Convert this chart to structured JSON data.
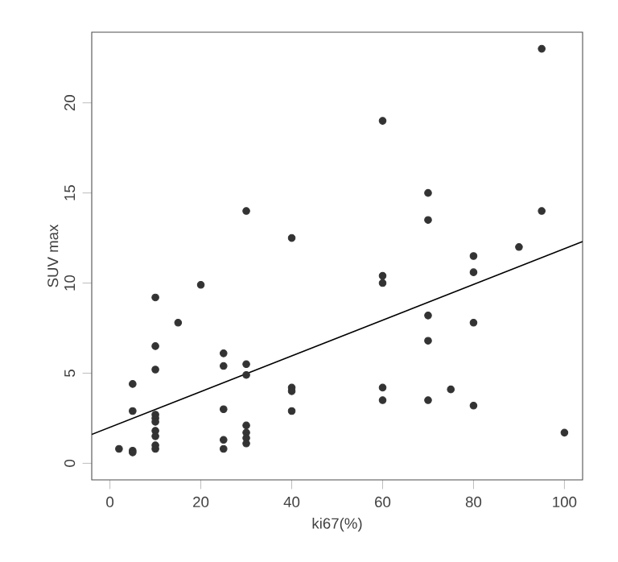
{
  "chart_data": {
    "type": "scatter",
    "xlabel": "ki67(%)",
    "ylabel": "SUV max",
    "xlim": [
      -4,
      104
    ],
    "ylim": [
      -0.92,
      23.92
    ],
    "xticks": [
      0,
      20,
      40,
      60,
      80,
      100
    ],
    "yticks": [
      0,
      5,
      10,
      15,
      20
    ],
    "grid": false,
    "series": [
      {
        "color": "#333333",
        "marker": "circle",
        "x": [
          2,
          5,
          5,
          5,
          5,
          10,
          10,
          10,
          10,
          10,
          10,
          10,
          10,
          10,
          10,
          15,
          20,
          25,
          25,
          25,
          25,
          25,
          30,
          30,
          30,
          30,
          30,
          30,
          30,
          40,
          40,
          40,
          40,
          60,
          60,
          60,
          60,
          60,
          70,
          70,
          70,
          70,
          70,
          75,
          80,
          80,
          80,
          80,
          90,
          95,
          95,
          100
        ],
        "values": [
          0.8,
          0.7,
          0.6,
          2.9,
          4.4,
          9.2,
          6.5,
          5.2,
          2.7,
          2.5,
          2.3,
          1.8,
          1.5,
          1.0,
          0.8,
          7.8,
          9.9,
          6.1,
          5.4,
          3.0,
          1.3,
          0.8,
          14.0,
          5.5,
          4.9,
          2.1,
          1.7,
          1.4,
          1.1,
          12.5,
          4.2,
          4.0,
          2.9,
          19.0,
          10.4,
          10.0,
          4.2,
          3.5,
          15.0,
          13.5,
          8.2,
          6.8,
          3.5,
          4.1,
          11.5,
          10.6,
          7.8,
          3.2,
          12.0,
          23.0,
          14.0,
          1.7
        ]
      },
      {
        "type": "line",
        "color": "#000000",
        "marker": "none",
        "line_style": "solid",
        "x": [
          -4,
          104
        ],
        "values": [
          1.6,
          12.3
        ]
      }
    ]
  }
}
